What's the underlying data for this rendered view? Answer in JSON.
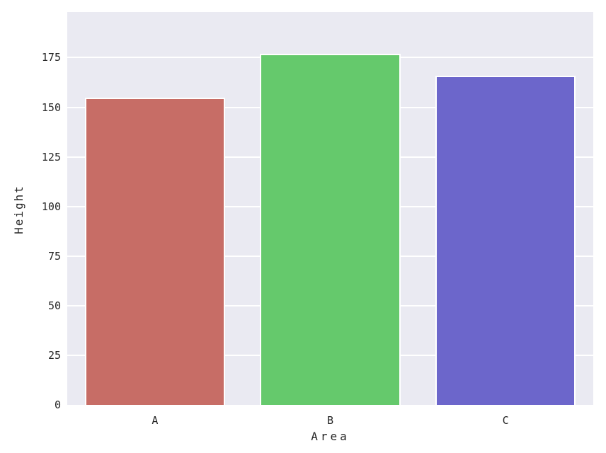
{
  "chart_data": {
    "type": "bar",
    "categories": [
      "A",
      "B",
      "C"
    ],
    "values": [
      155,
      177,
      166
    ],
    "title": "",
    "xlabel": "Area",
    "ylabel": "Height",
    "ylim": [
      0,
      198
    ],
    "yticks": [
      0,
      25,
      50,
      75,
      100,
      125,
      150,
      175
    ],
    "ytick_labels": [
      "0",
      "25",
      "50",
      "75",
      "100",
      "125",
      "150",
      "175"
    ],
    "grid": true,
    "legend_position": "none",
    "bar_width_fraction": 0.8,
    "colors": {
      "bar_fills": [
        "#c76d66",
        "#65c96c",
        "#6c66cb"
      ],
      "bar_edge": "#ffffff",
      "plot_background": "#eaeaf2",
      "gridline": "#ffffff",
      "figure_background": "#ffffff",
      "text": "#262626"
    }
  }
}
